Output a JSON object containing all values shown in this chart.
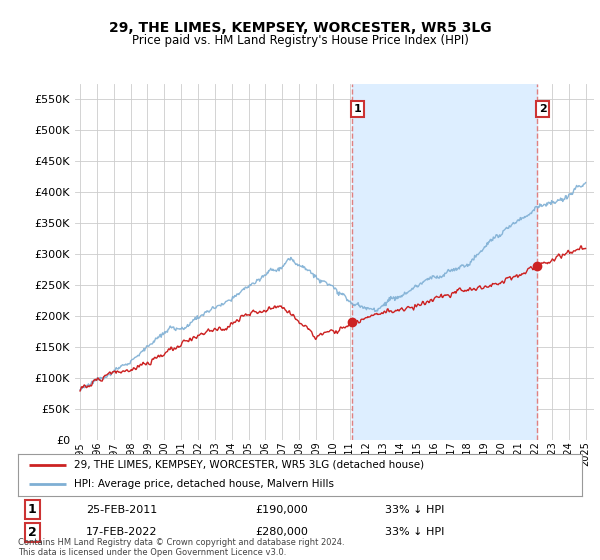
{
  "title": "29, THE LIMES, KEMPSEY, WORCESTER, WR5 3LG",
  "subtitle": "Price paid vs. HM Land Registry's House Price Index (HPI)",
  "legend_line1": "29, THE LIMES, KEMPSEY, WORCESTER, WR5 3LG (detached house)",
  "legend_line2": "HPI: Average price, detached house, Malvern Hills",
  "annotation1_date": "25-FEB-2011",
  "annotation1_price": "£190,000",
  "annotation1_hpi": "33% ↓ HPI",
  "annotation2_date": "17-FEB-2022",
  "annotation2_price": "£280,000",
  "annotation2_hpi": "33% ↓ HPI",
  "footer": "Contains HM Land Registry data © Crown copyright and database right 2024.\nThis data is licensed under the Open Government Licence v3.0.",
  "red_color": "#cc2222",
  "blue_color": "#7fafd4",
  "dashed_color": "#e08080",
  "shade_color": "#ddeeff",
  "ylim": [
    0,
    575000
  ],
  "yticks": [
    0,
    50000,
    100000,
    150000,
    200000,
    250000,
    300000,
    350000,
    400000,
    450000,
    500000,
    550000
  ],
  "sale1_year": 2011.12,
  "sale1_price": 190000,
  "sale2_year": 2022.12,
  "sale2_price": 280000,
  "background_color": "#ffffff",
  "grid_color": "#cccccc"
}
